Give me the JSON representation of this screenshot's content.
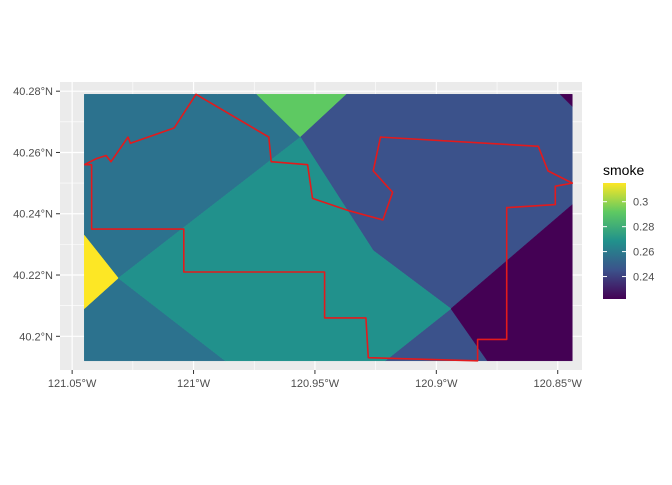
{
  "chart_data": {
    "type": "heatmap",
    "title": "",
    "xlabel": "",
    "ylabel": "",
    "xlim": [
      -121.055,
      -120.84
    ],
    "ylim": [
      40.189,
      40.283
    ],
    "x_ticks": [
      {
        "value": -121.05,
        "label": "121.05°W"
      },
      {
        "value": -121.0,
        "label": "121°W"
      },
      {
        "value": -120.95,
        "label": "120.95°W"
      },
      {
        "value": -120.9,
        "label": "120.9°W"
      },
      {
        "value": -120.85,
        "label": "120.85°W"
      }
    ],
    "y_ticks": [
      {
        "value": 40.2,
        "label": "40.2°N"
      },
      {
        "value": 40.22,
        "label": "40.22°N"
      },
      {
        "value": 40.24,
        "label": "40.24°N"
      },
      {
        "value": 40.26,
        "label": "40.26°N"
      },
      {
        "value": 40.28,
        "label": "40.28°N"
      }
    ],
    "grid": true,
    "background": "#ebebeb",
    "legend": {
      "title": "smoke",
      "position": "right",
      "range": [
        0.222,
        0.315
      ],
      "breaks": [
        {
          "value": 0.24,
          "label": "0.24"
        },
        {
          "value": 0.26,
          "label": "0.26"
        },
        {
          "value": 0.28,
          "label": "0.28"
        },
        {
          "value": 0.3,
          "label": "0.3"
        }
      ],
      "colors": [
        "#440154",
        "#3b528b",
        "#21918c",
        "#5ec962",
        "#fde725"
      ]
    },
    "regions": [
      {
        "value": 0.263,
        "color": "#2c728e",
        "polygon": [
          [
            -121.045,
            40.279
          ],
          [
            -120.99,
            40.279
          ],
          [
            -120.974,
            40.279
          ],
          [
            -120.956,
            40.265
          ],
          [
            -121.031,
            40.219
          ],
          [
            -121.045,
            40.233
          ]
        ]
      },
      {
        "value": 0.263,
        "color": "#2c728e",
        "polygon": [
          [
            -121.045,
            40.209
          ],
          [
            -121.031,
            40.219
          ],
          [
            -120.987,
            40.192
          ],
          [
            -121.045,
            40.192
          ]
        ]
      },
      {
        "value": 0.288,
        "color": "#5ec962",
        "polygon": [
          [
            -120.974,
            40.279
          ],
          [
            -120.937,
            40.279
          ],
          [
            -120.956,
            40.265
          ]
        ]
      },
      {
        "value": 0.245,
        "color": "#3b528b",
        "polygon": [
          [
            -120.937,
            40.279
          ],
          [
            -120.849,
            40.279
          ],
          [
            -120.844,
            40.275
          ],
          [
            -120.844,
            40.243
          ],
          [
            -120.894,
            40.209
          ],
          [
            -120.926,
            40.228
          ],
          [
            -120.956,
            40.265
          ]
        ]
      },
      {
        "value": 0.245,
        "color": "#3b528b",
        "polygon": [
          [
            -120.921,
            40.192
          ],
          [
            -120.894,
            40.209
          ],
          [
            -120.879,
            40.192
          ]
        ]
      },
      {
        "value": 0.222,
        "color": "#440154",
        "polygon": [
          [
            -120.849,
            40.279
          ],
          [
            -120.844,
            40.279
          ],
          [
            -120.844,
            40.275
          ]
        ]
      },
      {
        "value": 0.222,
        "color": "#440154",
        "polygon": [
          [
            -120.844,
            40.243
          ],
          [
            -120.844,
            40.192
          ],
          [
            -120.879,
            40.192
          ],
          [
            -120.894,
            40.209
          ]
        ]
      },
      {
        "value": 0.315,
        "color": "#fde725",
        "polygon": [
          [
            -121.045,
            40.233
          ],
          [
            -121.031,
            40.219
          ],
          [
            -121.045,
            40.209
          ]
        ]
      },
      {
        "value": 0.257,
        "color": "#21918c",
        "polygon": [
          [
            -120.956,
            40.265
          ],
          [
            -120.926,
            40.228
          ],
          [
            -120.894,
            40.209
          ],
          [
            -120.921,
            40.192
          ],
          [
            -120.987,
            40.192
          ],
          [
            -121.031,
            40.219
          ]
        ]
      }
    ],
    "boundary": {
      "color": "#e31a1c",
      "points": [
        [
          -121.045,
          40.256
        ],
        [
          -121.04,
          40.258
        ],
        [
          -121.036,
          40.259
        ],
        [
          -121.034,
          40.257
        ],
        [
          -121.027,
          40.265
        ],
        [
          -121.026,
          40.263
        ],
        [
          -121.008,
          40.268
        ],
        [
          -120.999,
          40.279
        ],
        [
          -120.969,
          40.265
        ],
        [
          -120.968,
          40.257
        ],
        [
          -120.953,
          40.256
        ],
        [
          -120.951,
          40.245
        ],
        [
          -120.936,
          40.241
        ],
        [
          -120.922,
          40.238
        ],
        [
          -120.918,
          40.247
        ],
        [
          -120.926,
          40.254
        ],
        [
          -120.923,
          40.265
        ],
        [
          -120.858,
          40.262
        ],
        [
          -120.854,
          40.254
        ],
        [
          -120.844,
          40.25
        ],
        [
          -120.851,
          40.249
        ],
        [
          -120.851,
          40.243
        ],
        [
          -120.871,
          40.242
        ],
        [
          -120.871,
          40.199
        ],
        [
          -120.883,
          40.199
        ],
        [
          -120.883,
          40.192
        ],
        [
          -120.928,
          40.193
        ],
        [
          -120.929,
          40.206
        ],
        [
          -120.946,
          40.206
        ],
        [
          -120.946,
          40.221
        ],
        [
          -121.004,
          40.221
        ],
        [
          -121.004,
          40.235
        ],
        [
          -121.042,
          40.235
        ],
        [
          -121.042,
          40.256
        ],
        [
          -121.045,
          40.256
        ]
      ]
    }
  }
}
